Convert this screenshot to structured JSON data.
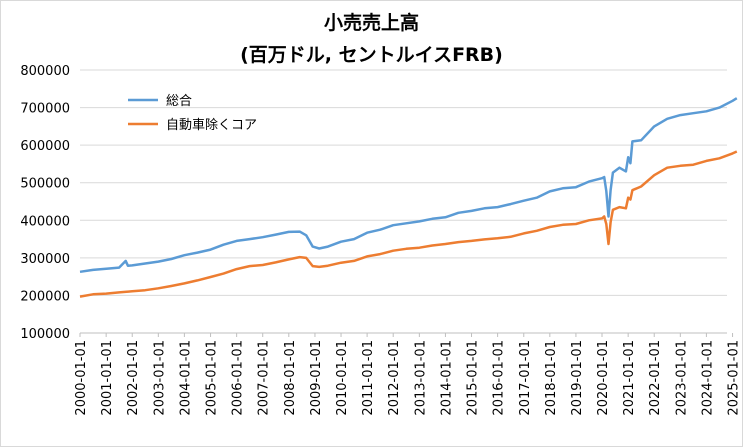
{
  "chart_data": {
    "type": "line",
    "title": "小売売上高",
    "subtitle": "(百万ドル, セントルイスFRB)",
    "xlabel": "",
    "ylabel": "",
    "ylim": [
      100000,
      800000
    ],
    "yticks": [
      "100000",
      "200000",
      "300000",
      "400000",
      "500000",
      "600000",
      "700000",
      "800000"
    ],
    "xticks": [
      "2000-01-01",
      "2001-01-01",
      "2002-01-01",
      "2003-01-01",
      "2004-01-01",
      "2005-01-01",
      "2006-01-01",
      "2007-01-01",
      "2008-01-01",
      "2009-01-01",
      "2010-01-01",
      "2011-01-01",
      "2012-01-01",
      "2013-01-01",
      "2014-01-01",
      "2015-01-01",
      "2016-01-01",
      "2017-01-01",
      "2018-01-01",
      "2019-01-01",
      "2020-01-01",
      "2021-01-01",
      "2022-01-01",
      "2023-01-01",
      "2024-01-01",
      "2025-01-01"
    ],
    "grid": "horizontal",
    "legend_position": "top-left",
    "series": [
      {
        "name": "総合",
        "color": "#5b9bd5",
        "points": [
          [
            "2000-01-01",
            263000
          ],
          [
            "2000-07-01",
            268000
          ],
          [
            "2001-01-01",
            271000
          ],
          [
            "2001-07-01",
            274000
          ],
          [
            "2001-10-01",
            292000
          ],
          [
            "2001-11-01",
            279000
          ],
          [
            "2002-01-01",
            280000
          ],
          [
            "2002-07-01",
            285000
          ],
          [
            "2003-01-01",
            290000
          ],
          [
            "2003-07-01",
            297000
          ],
          [
            "2004-01-01",
            307000
          ],
          [
            "2004-07-01",
            314000
          ],
          [
            "2005-01-01",
            322000
          ],
          [
            "2005-07-01",
            335000
          ],
          [
            "2006-01-01",
            345000
          ],
          [
            "2006-07-01",
            350000
          ],
          [
            "2007-01-01",
            355000
          ],
          [
            "2007-07-01",
            362000
          ],
          [
            "2008-01-01",
            369000
          ],
          [
            "2008-06-01",
            370000
          ],
          [
            "2008-09-01",
            360000
          ],
          [
            "2008-12-01",
            330000
          ],
          [
            "2009-03-01",
            325000
          ],
          [
            "2009-07-01",
            330000
          ],
          [
            "2010-01-01",
            343000
          ],
          [
            "2010-07-01",
            350000
          ],
          [
            "2011-01-01",
            367000
          ],
          [
            "2011-07-01",
            375000
          ],
          [
            "2012-01-01",
            387000
          ],
          [
            "2012-07-01",
            392000
          ],
          [
            "2013-01-01",
            397000
          ],
          [
            "2013-07-01",
            404000
          ],
          [
            "2014-01-01",
            408000
          ],
          [
            "2014-07-01",
            420000
          ],
          [
            "2015-01-01",
            425000
          ],
          [
            "2015-07-01",
            432000
          ],
          [
            "2016-01-01",
            435000
          ],
          [
            "2016-07-01",
            443000
          ],
          [
            "2017-01-01",
            452000
          ],
          [
            "2017-07-01",
            460000
          ],
          [
            "2018-01-01",
            477000
          ],
          [
            "2018-07-01",
            485000
          ],
          [
            "2019-01-01",
            488000
          ],
          [
            "2019-07-01",
            503000
          ],
          [
            "2020-01-01",
            512000
          ],
          [
            "2020-02-01",
            515000
          ],
          [
            "2020-03-01",
            478000
          ],
          [
            "2020-04-01",
            410000
          ],
          [
            "2020-05-01",
            480000
          ],
          [
            "2020-06-01",
            527000
          ],
          [
            "2020-09-01",
            540000
          ],
          [
            "2020-12-01",
            530000
          ],
          [
            "2021-01-01",
            568000
          ],
          [
            "2021-02-01",
            552000
          ],
          [
            "2021-03-01",
            610000
          ],
          [
            "2021-07-01",
            613000
          ],
          [
            "2022-01-01",
            650000
          ],
          [
            "2022-07-01",
            670000
          ],
          [
            "2023-01-01",
            680000
          ],
          [
            "2023-07-01",
            685000
          ],
          [
            "2024-01-01",
            690000
          ],
          [
            "2024-07-01",
            700000
          ],
          [
            "2025-01-01",
            718000
          ],
          [
            "2025-03-01",
            725000
          ]
        ]
      },
      {
        "name": "自動車除くコア",
        "color": "#ed7d31",
        "points": [
          [
            "2000-01-01",
            197000
          ],
          [
            "2000-07-01",
            203000
          ],
          [
            "2001-01-01",
            205000
          ],
          [
            "2001-07-01",
            208000
          ],
          [
            "2002-01-01",
            211000
          ],
          [
            "2002-07-01",
            214000
          ],
          [
            "2003-01-01",
            219000
          ],
          [
            "2003-07-01",
            225000
          ],
          [
            "2004-01-01",
            232000
          ],
          [
            "2004-07-01",
            240000
          ],
          [
            "2005-01-01",
            249000
          ],
          [
            "2005-07-01",
            258000
          ],
          [
            "2006-01-01",
            270000
          ],
          [
            "2006-07-01",
            278000
          ],
          [
            "2007-01-01",
            281000
          ],
          [
            "2007-07-01",
            288000
          ],
          [
            "2008-01-01",
            296000
          ],
          [
            "2008-06-01",
            302000
          ],
          [
            "2008-09-01",
            300000
          ],
          [
            "2008-12-01",
            278000
          ],
          [
            "2009-03-01",
            276000
          ],
          [
            "2009-07-01",
            279000
          ],
          [
            "2010-01-01",
            287000
          ],
          [
            "2010-07-01",
            292000
          ],
          [
            "2011-01-01",
            304000
          ],
          [
            "2011-07-01",
            310000
          ],
          [
            "2012-01-01",
            319000
          ],
          [
            "2012-07-01",
            324000
          ],
          [
            "2013-01-01",
            327000
          ],
          [
            "2013-07-01",
            333000
          ],
          [
            "2014-01-01",
            337000
          ],
          [
            "2014-07-01",
            342000
          ],
          [
            "2015-01-01",
            345000
          ],
          [
            "2015-07-01",
            349000
          ],
          [
            "2016-01-01",
            352000
          ],
          [
            "2016-07-01",
            356000
          ],
          [
            "2017-01-01",
            365000
          ],
          [
            "2017-07-01",
            372000
          ],
          [
            "2018-01-01",
            382000
          ],
          [
            "2018-07-01",
            388000
          ],
          [
            "2019-01-01",
            390000
          ],
          [
            "2019-07-01",
            400000
          ],
          [
            "2020-01-01",
            405000
          ],
          [
            "2020-02-01",
            410000
          ],
          [
            "2020-03-01",
            390000
          ],
          [
            "2020-04-01",
            337000
          ],
          [
            "2020-05-01",
            395000
          ],
          [
            "2020-06-01",
            428000
          ],
          [
            "2020-09-01",
            435000
          ],
          [
            "2020-12-01",
            432000
          ],
          [
            "2021-01-01",
            460000
          ],
          [
            "2021-02-01",
            455000
          ],
          [
            "2021-03-01",
            480000
          ],
          [
            "2021-07-01",
            490000
          ],
          [
            "2022-01-01",
            520000
          ],
          [
            "2022-07-01",
            540000
          ],
          [
            "2023-01-01",
            545000
          ],
          [
            "2023-07-01",
            548000
          ],
          [
            "2024-01-01",
            558000
          ],
          [
            "2024-07-01",
            565000
          ],
          [
            "2025-01-01",
            578000
          ],
          [
            "2025-03-01",
            583000
          ]
        ]
      }
    ]
  }
}
